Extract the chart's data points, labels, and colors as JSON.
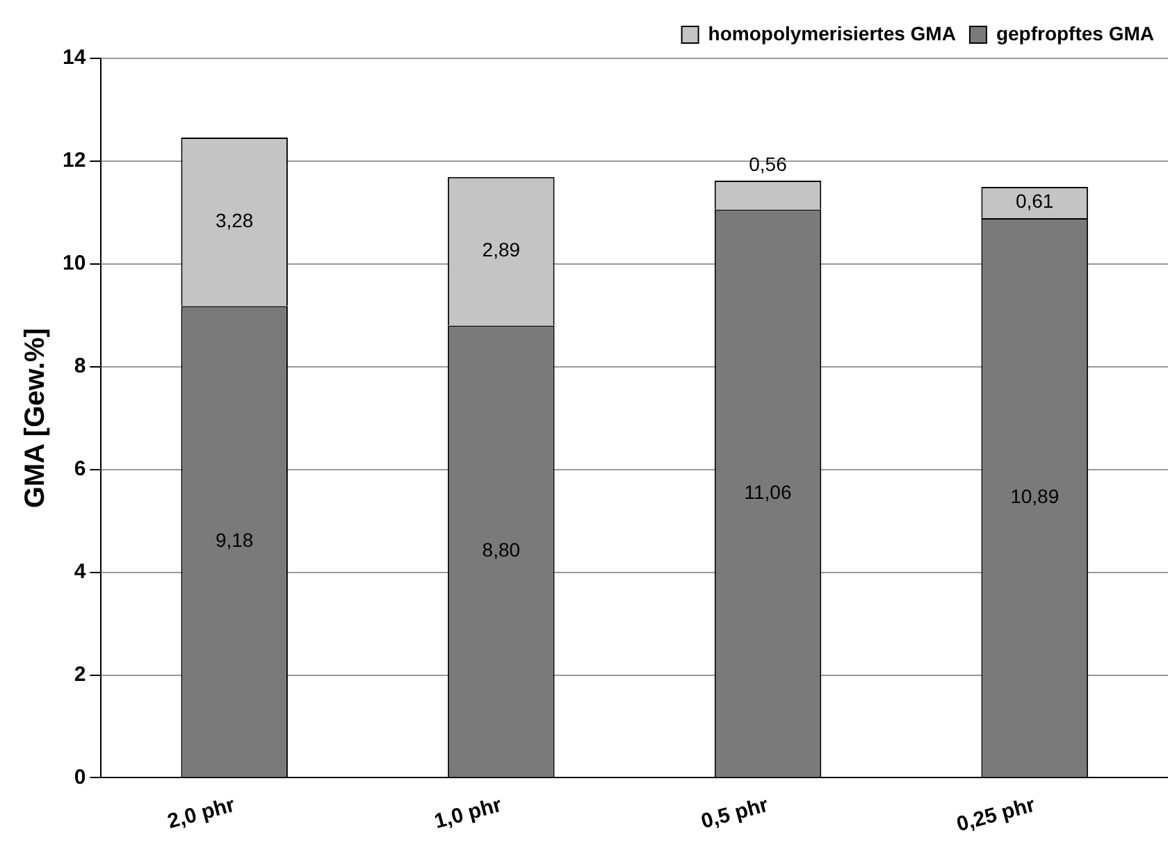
{
  "chart_data": {
    "type": "bar",
    "stacked": true,
    "ylabel": "GMA [Gew.%]",
    "categories": [
      "2,0 phr",
      "1,0 phr",
      "0,5 phr",
      "0,25 phr"
    ],
    "series": [
      {
        "name": "gepfropftes GMA",
        "color": "#7a7a7a",
        "values": [
          9.18,
          8.8,
          11.06,
          10.89
        ],
        "value_labels": [
          "9,18",
          "8,80",
          "11,06",
          "10,89"
        ]
      },
      {
        "name": "homopolymerisiertes GMA",
        "color": "#c4c4c4",
        "values": [
          3.28,
          2.89,
          0.56,
          0.61
        ],
        "value_labels": [
          "3,28",
          "2,89",
          "0,56",
          "0,61"
        ]
      }
    ],
    "ylim": [
      0,
      14
    ],
    "yticks": [
      0,
      2,
      4,
      6,
      8,
      10,
      12,
      14
    ],
    "grid": "y",
    "legend": "top right"
  }
}
